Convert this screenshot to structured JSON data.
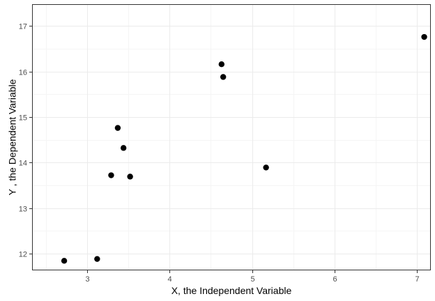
{
  "chart_data": {
    "type": "scatter",
    "title": "",
    "xlabel": "X, the Independent Variable",
    "ylabel": "Y , the Dependent Variable",
    "xlim": [
      2.33,
      7.17
    ],
    "ylim": [
      11.63,
      17.48
    ],
    "x_ticks": [
      3,
      4,
      5,
      6,
      7
    ],
    "y_ticks": [
      12,
      13,
      14,
      15,
      16,
      17
    ],
    "grid": true,
    "legend": "none",
    "point_color": "#000000",
    "grid_major_color": "#ebebeb",
    "grid_minor_color": "#f5f5f5",
    "points": [
      {
        "x": 2.72,
        "y": 11.84
      },
      {
        "x": 3.12,
        "y": 11.88
      },
      {
        "x": 3.29,
        "y": 13.72
      },
      {
        "x": 3.37,
        "y": 14.76
      },
      {
        "x": 3.44,
        "y": 14.32
      },
      {
        "x": 3.52,
        "y": 13.69
      },
      {
        "x": 4.63,
        "y": 16.16
      },
      {
        "x": 4.65,
        "y": 15.88
      },
      {
        "x": 5.17,
        "y": 13.89
      },
      {
        "x": 7.09,
        "y": 16.76
      }
    ]
  }
}
